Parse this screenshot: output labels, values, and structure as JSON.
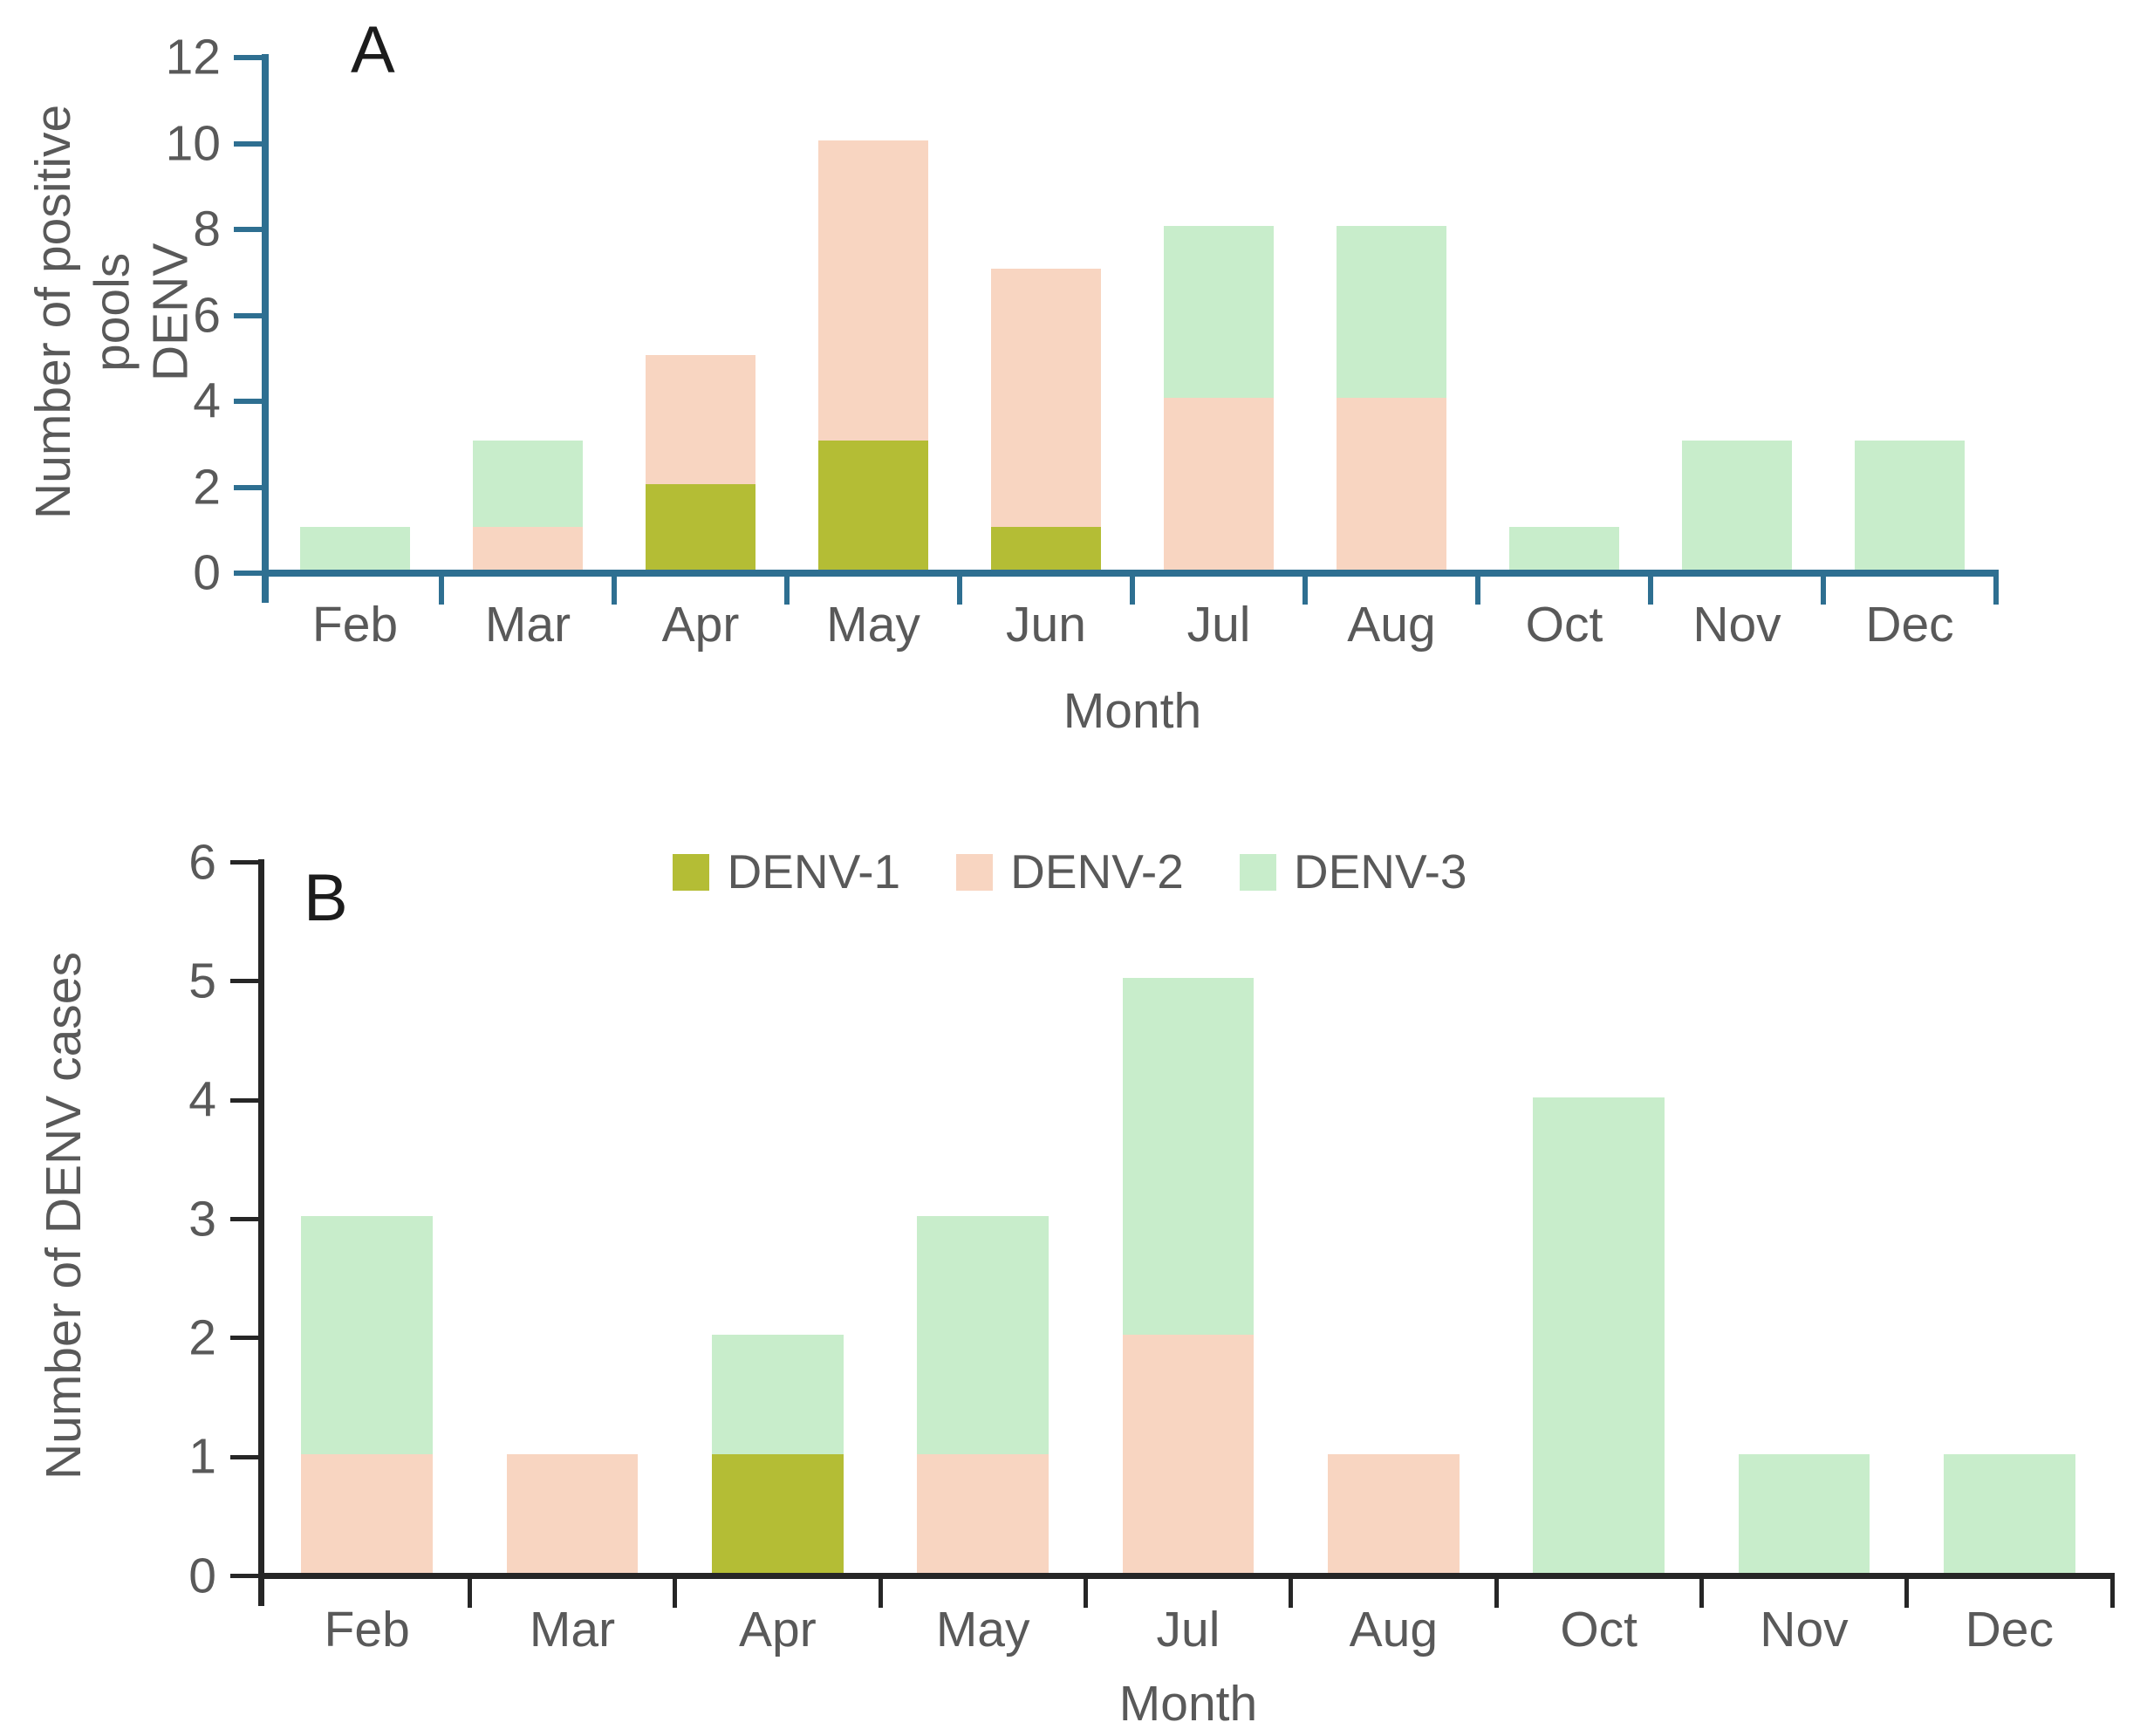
{
  "background": "#ffffff",
  "text_color": "#595959",
  "chart_data": [
    {
      "type": "bar",
      "stacked": true,
      "panel_label": "A",
      "title": "",
      "xlabel": "Month",
      "ylabel": "Number of positive pools DENV",
      "ylabel_lines": [
        "Number of positive pools",
        "DENV"
      ],
      "categories": [
        "Feb",
        "Mar",
        "Apr",
        "May",
        "Jun",
        "Jul",
        "Aug",
        "Oct",
        "Nov",
        "Dec"
      ],
      "series": [
        {
          "name": "DENV-1",
          "color": "#b4bd35",
          "values": [
            0,
            0,
            2,
            3,
            1,
            0,
            0,
            0,
            0,
            0
          ]
        },
        {
          "name": "DENV-2",
          "color": "#f8d5c1",
          "values": [
            0,
            1,
            3,
            7,
            6,
            4,
            4,
            0,
            0,
            0
          ]
        },
        {
          "name": "DENV-3",
          "color": "#c8edcb",
          "values": [
            1,
            2,
            0,
            0,
            0,
            4,
            4,
            1,
            3,
            3
          ]
        }
      ],
      "totals": [
        1,
        3,
        5,
        10,
        7,
        8,
        8,
        1,
        3,
        3
      ],
      "ylim": [
        0,
        12
      ],
      "ytick_step": 2,
      "yticks": [
        0,
        2,
        4,
        6,
        8,
        10,
        12
      ],
      "grid": false,
      "axis_color": "#2e6f91",
      "legend_position": "none"
    },
    {
      "type": "bar",
      "stacked": true,
      "panel_label": "B",
      "title": "",
      "xlabel": "Month",
      "ylabel": "Number of DENV cases",
      "ylabel_lines": [
        "Number of DENV cases"
      ],
      "categories": [
        "Feb",
        "Mar",
        "Apr",
        "May",
        "Jul",
        "Aug",
        "Oct",
        "Nov",
        "Dec"
      ],
      "series": [
        {
          "name": "DENV-1",
          "color": "#b4bd35",
          "values": [
            0,
            0,
            1,
            0,
            0,
            0,
            0,
            0,
            0
          ]
        },
        {
          "name": "DENV-2",
          "color": "#f8d5c1",
          "values": [
            1,
            1,
            0,
            1,
            2,
            1,
            0,
            0,
            0
          ]
        },
        {
          "name": "DENV-3",
          "color": "#c8edcb",
          "values": [
            2,
            0,
            1,
            2,
            3,
            0,
            4,
            1,
            1
          ]
        }
      ],
      "totals": [
        3,
        1,
        2,
        3,
        5,
        1,
        4,
        1,
        1
      ],
      "ylim": [
        0,
        6
      ],
      "ytick_step": 1,
      "yticks": [
        0,
        1,
        2,
        3,
        4,
        5,
        6
      ],
      "grid": false,
      "axis_color": "#262626",
      "legend_position": "top",
      "legend_labels": [
        "DENV-1",
        "DENV-2",
        "DENV-3"
      ]
    }
  ]
}
